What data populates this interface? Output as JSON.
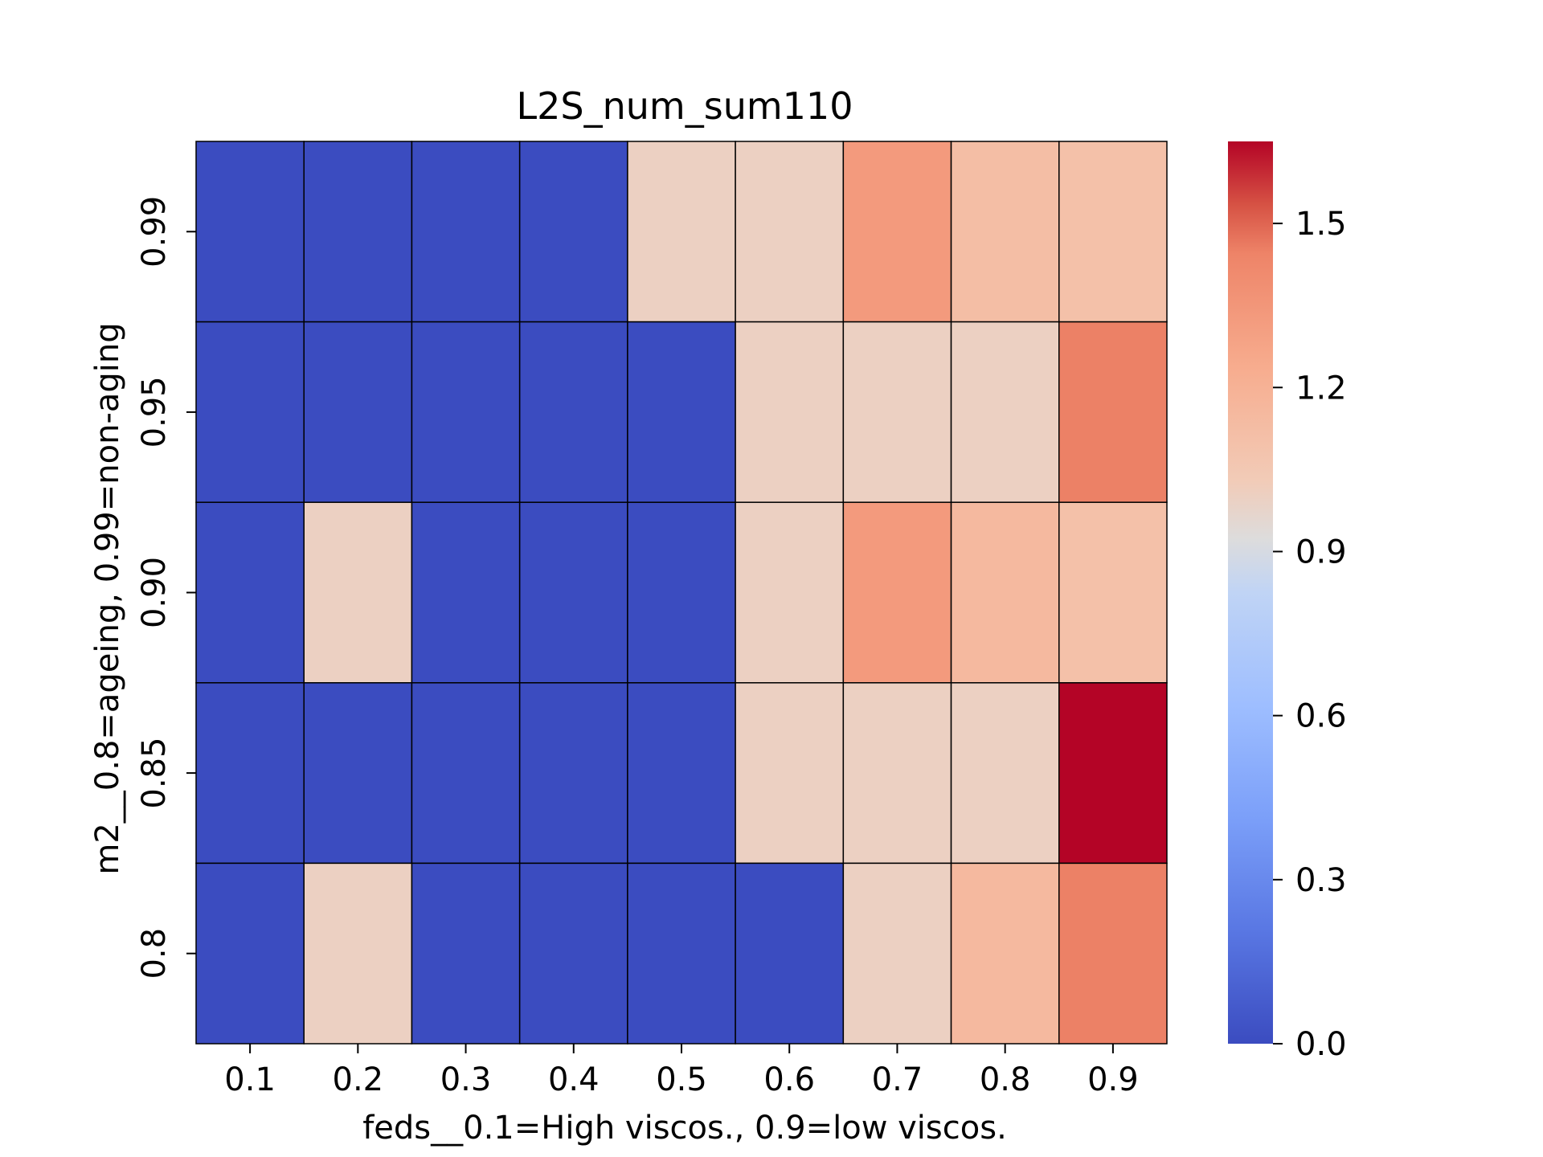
{
  "chart_data": {
    "type": "heatmap",
    "title": "L2S_num_sum110",
    "xlabel": "feds__0.1=High viscos., 0.9=low viscos.",
    "ylabel": "m2__0.8=ageing, 0.99=non-aging",
    "x_categories": [
      "0.1",
      "0.2",
      "0.3",
      "0.4",
      "0.5",
      "0.6",
      "0.7",
      "0.8",
      "0.9"
    ],
    "y_categories": [
      "0.99",
      "0.95",
      "0.90",
      "0.85",
      "0.8"
    ],
    "values": [
      [
        0.0,
        0.0,
        0.0,
        0.0,
        1.0,
        1.0,
        1.33,
        1.12,
        1.1
      ],
      [
        0.0,
        0.0,
        0.0,
        0.0,
        0.0,
        1.0,
        1.0,
        1.0,
        1.45
      ],
      [
        0.0,
        1.0,
        0.0,
        0.0,
        0.0,
        1.0,
        1.33,
        1.15,
        1.1
      ],
      [
        0.0,
        0.0,
        0.0,
        0.0,
        0.0,
        1.0,
        1.0,
        1.0,
        1.65
      ],
      [
        0.0,
        1.0,
        0.0,
        0.0,
        0.0,
        0.0,
        1.0,
        1.15,
        1.45
      ]
    ],
    "colormap": "coolwarm",
    "vmin": 0.0,
    "vmax": 1.65,
    "colorbar_ticks": [
      "0.0",
      "0.3",
      "0.6",
      "0.9",
      "1.2",
      "1.5"
    ],
    "cell_border_color": "#000000",
    "grid": false,
    "legend": "colorbar-right"
  }
}
